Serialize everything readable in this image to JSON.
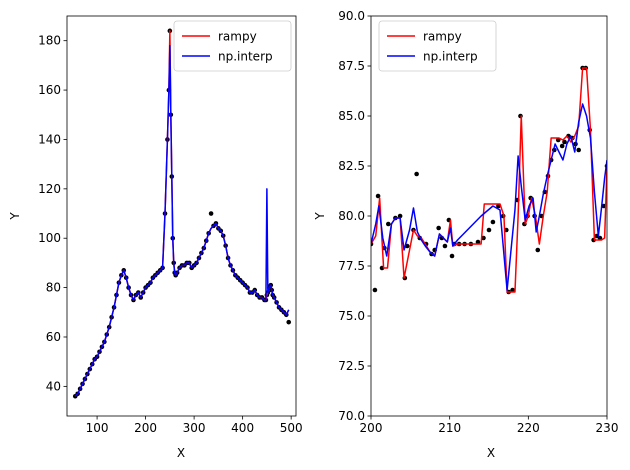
{
  "chart_data": [
    {
      "type": "line",
      "xlabel": "X",
      "ylabel": "Y",
      "xlim": [
        38,
        510
      ],
      "ylim": [
        28,
        190
      ],
      "xticks": [
        100,
        200,
        300,
        400,
        500
      ],
      "yticks": [
        40,
        60,
        80,
        100,
        120,
        140,
        160,
        180
      ],
      "legend_position": "top-right",
      "grid": false,
      "series": [
        {
          "name": "rampy",
          "color": "#ff0000",
          "x": [
            55,
            60,
            65,
            70,
            75,
            80,
            85,
            90,
            95,
            100,
            105,
            110,
            115,
            120,
            125,
            130,
            135,
            140,
            145,
            150,
            155,
            160,
            165,
            170,
            175,
            180,
            185,
            190,
            195,
            200,
            205,
            210,
            215,
            220,
            225,
            230,
            235,
            240,
            245,
            248,
            250,
            252,
            254,
            256,
            258,
            260,
            262,
            265,
            270,
            275,
            280,
            285,
            290,
            295,
            300,
            305,
            310,
            315,
            320,
            325,
            330,
            335,
            340,
            345,
            350,
            355,
            360,
            365,
            370,
            375,
            380,
            385,
            390,
            395,
            400,
            405,
            410,
            415,
            420,
            425,
            430,
            435,
            440,
            445,
            448,
            450,
            452,
            455,
            458,
            460,
            462,
            465,
            470,
            475,
            480,
            485,
            490,
            495
          ],
          "y": [
            36,
            37,
            39,
            41,
            43,
            45,
            47,
            49,
            51,
            52,
            54,
            56,
            58,
            61,
            64,
            68,
            72,
            77,
            82,
            85,
            87,
            84,
            80,
            77,
            75,
            77,
            78,
            76,
            78,
            80,
            81,
            82,
            84,
            85,
            86,
            87,
            88,
            110,
            140,
            160,
            184,
            150,
            125,
            100,
            90,
            86,
            85,
            86,
            88,
            89,
            89,
            90,
            90,
            88,
            89,
            90,
            92,
            94,
            96,
            99,
            102,
            104,
            105,
            106,
            104,
            103,
            101,
            97,
            92,
            89,
            87,
            85,
            84,
            83,
            82,
            81,
            80,
            78,
            78,
            79,
            77,
            76,
            76,
            75,
            75,
            77,
            78,
            80,
            81,
            79,
            77,
            76,
            74,
            72,
            71,
            70,
            69,
            71
          ]
        },
        {
          "name": "np.interp",
          "color": "#0000ff",
          "x": [
            55,
            60,
            65,
            70,
            75,
            80,
            85,
            90,
            95,
            100,
            105,
            110,
            115,
            120,
            125,
            130,
            135,
            140,
            145,
            150,
            155,
            160,
            165,
            170,
            175,
            180,
            185,
            190,
            195,
            200,
            205,
            210,
            215,
            220,
            225,
            230,
            235,
            240,
            245,
            248,
            250,
            252,
            254,
            256,
            258,
            260,
            262,
            265,
            270,
            275,
            280,
            285,
            290,
            295,
            300,
            305,
            310,
            315,
            320,
            325,
            330,
            335,
            340,
            345,
            350,
            355,
            360,
            365,
            370,
            375,
            380,
            385,
            390,
            395,
            400,
            405,
            410,
            415,
            420,
            425,
            430,
            435,
            440,
            445,
            448,
            450,
            452,
            455,
            458,
            460,
            462,
            465,
            470,
            475,
            480,
            485,
            490,
            495
          ],
          "y": [
            36,
            37,
            39,
            41,
            43,
            45,
            47,
            49,
            51,
            52,
            54,
            56,
            58,
            61,
            64,
            68,
            72,
            77,
            82,
            85,
            87,
            84,
            80,
            77,
            75,
            77,
            78,
            76,
            78,
            80,
            81,
            82,
            84,
            85,
            86,
            87,
            88,
            110,
            140,
            160,
            178,
            150,
            125,
            100,
            90,
            86,
            85,
            86,
            88,
            89,
            89,
            90,
            90,
            88,
            89,
            90,
            92,
            94,
            96,
            99,
            102,
            104,
            105,
            106,
            104,
            103,
            101,
            97,
            92,
            89,
            87,
            85,
            84,
            83,
            82,
            81,
            80,
            78,
            78,
            79,
            77,
            76,
            76,
            75,
            75,
            120,
            78,
            80,
            81,
            79,
            77,
            76,
            74,
            72,
            71,
            70,
            69,
            71
          ]
        }
      ],
      "points": {
        "color": "#000000",
        "x": [
          55,
          60,
          65,
          70,
          75,
          80,
          85,
          90,
          95,
          100,
          105,
          110,
          115,
          120,
          125,
          130,
          135,
          140,
          145,
          150,
          155,
          160,
          165,
          170,
          175,
          180,
          185,
          190,
          195,
          200,
          205,
          210,
          215,
          220,
          225,
          230,
          235,
          240,
          245,
          248,
          250,
          252,
          254,
          256,
          258,
          260,
          262,
          265,
          270,
          275,
          280,
          285,
          290,
          295,
          300,
          305,
          310,
          315,
          320,
          325,
          330,
          335,
          340,
          345,
          350,
          355,
          360,
          365,
          370,
          375,
          380,
          385,
          390,
          395,
          400,
          405,
          410,
          415,
          420,
          425,
          430,
          435,
          440,
          445,
          448,
          450,
          452,
          455,
          458,
          460,
          462,
          465,
          470,
          475,
          480,
          485,
          490,
          495
        ],
        "y": [
          36,
          37,
          39,
          41,
          43,
          45,
          47,
          49,
          51,
          52,
          54,
          56,
          58,
          61,
          64,
          68,
          72,
          77,
          82,
          85,
          87,
          84,
          80,
          77,
          75,
          77,
          78,
          76,
          78,
          80,
          81,
          82,
          84,
          85,
          86,
          87,
          88,
          110,
          140,
          160,
          184,
          150,
          125,
          100,
          90,
          86,
          85,
          86,
          88,
          89,
          89,
          90,
          90,
          88,
          89,
          90,
          92,
          94,
          96,
          99,
          102,
          110,
          105,
          106,
          104,
          103,
          101,
          97,
          92,
          89,
          87,
          85,
          84,
          83,
          82,
          81,
          80,
          78,
          78,
          79,
          77,
          76,
          76,
          75,
          75,
          77,
          78,
          80,
          81,
          79,
          77,
          76,
          74,
          72,
          71,
          70,
          69,
          66
        ]
      }
    },
    {
      "type": "line",
      "xlabel": "X",
      "ylabel": "Y",
      "xlim": [
        200,
        230
      ],
      "ylim": [
        70,
        90
      ],
      "xticks": [
        200,
        210,
        220,
        230
      ],
      "yticks": [
        70.0,
        72.5,
        75.0,
        77.5,
        80.0,
        82.5,
        85.0,
        87.5,
        90.0
      ],
      "legend_position": "top-left",
      "grid": false,
      "series": [
        {
          "name": "rampy",
          "color": "#ff0000",
          "x": [
            200.0,
            200.6,
            201.1,
            201.6,
            202.1,
            202.6,
            203.1,
            203.7,
            204.2,
            204.9,
            205.4,
            205.9,
            206.4,
            206.9,
            207.5,
            208.1,
            208.7,
            209.2,
            209.7,
            210.1,
            210.4,
            211.0,
            212.0,
            213.0,
            214.0,
            214.4,
            215.5,
            215.9,
            216.4,
            216.9,
            217.3,
            217.8,
            218.3,
            218.7,
            219.1,
            219.6,
            220.0,
            220.4,
            220.9,
            221.4,
            221.9,
            222.4,
            222.9,
            223.4,
            223.9,
            224.4,
            224.9,
            225.4,
            225.9,
            226.4,
            226.9,
            227.4,
            227.9,
            228.4,
            228.8,
            229.3,
            229.7,
            230.0
          ],
          "y": [
            78.6,
            79.0,
            80.9,
            77.4,
            77.4,
            79.6,
            79.9,
            79.9,
            76.9,
            78.3,
            79.3,
            79.0,
            78.9,
            78.6,
            78.2,
            78.0,
            79.1,
            78.9,
            78.7,
            79.8,
            78.5,
            78.6,
            78.6,
            78.6,
            78.6,
            80.6,
            80.6,
            80.6,
            80.6,
            80.0,
            76.2,
            76.2,
            76.2,
            80.0,
            85.0,
            79.6,
            80.0,
            80.9,
            80.0,
            78.6,
            80.0,
            81.2,
            83.9,
            83.9,
            83.9,
            83.8,
            84.0,
            83.7,
            84.0,
            84.5,
            87.4,
            87.4,
            84.3,
            78.8,
            78.8,
            78.8,
            78.9,
            82.5
          ]
        },
        {
          "name": "np.interp",
          "color": "#0000ff",
          "x": [
            200.0,
            200.6,
            201.0,
            201.5,
            202.0,
            202.6,
            203.1,
            203.7,
            204.2,
            204.9,
            205.4,
            205.9,
            206.4,
            206.9,
            207.5,
            208.1,
            208.7,
            209.2,
            209.7,
            210.1,
            210.4,
            211.0,
            212.0,
            213.0,
            214.0,
            215.5,
            216.4,
            217.3,
            218.3,
            218.7,
            219.1,
            219.6,
            220.1,
            220.6,
            221.0,
            221.4,
            221.9,
            222.4,
            222.9,
            223.4,
            223.9,
            224.4,
            224.9,
            225.4,
            225.9,
            226.4,
            226.9,
            227.4,
            227.9,
            228.4,
            228.9,
            229.3,
            229.7,
            230.0
          ],
          "y": [
            78.6,
            79.6,
            80.5,
            78.9,
            78.0,
            79.6,
            79.9,
            79.9,
            78.3,
            79.3,
            80.4,
            79.2,
            78.8,
            78.5,
            78.2,
            78.0,
            79.1,
            78.9,
            78.7,
            79.4,
            78.5,
            78.8,
            79.2,
            79.6,
            80.0,
            80.5,
            80.3,
            76.3,
            80.3,
            83.0,
            81.5,
            79.8,
            80.5,
            80.9,
            79.2,
            80.0,
            81.1,
            82.0,
            82.8,
            83.6,
            83.2,
            82.8,
            83.6,
            84.0,
            83.2,
            84.7,
            85.6,
            85.0,
            83.9,
            81.2,
            79.0,
            80.4,
            81.9,
            82.8
          ]
        }
      ],
      "points": {
        "color": "#000000",
        "x": [
          200.0,
          200.5,
          200.9,
          201.4,
          201.7,
          202.2,
          203.1,
          203.7,
          204.3,
          204.6,
          205.4,
          205.8,
          206.2,
          207.0,
          207.7,
          208.1,
          208.6,
          209.0,
          209.4,
          209.9,
          210.3,
          210.6,
          211.2,
          211.9,
          212.7,
          213.6,
          214.3,
          215.0,
          215.5,
          216.2,
          216.8,
          217.2,
          217.5,
          218.0,
          218.6,
          219.0,
          219.5,
          219.9,
          220.3,
          220.8,
          221.2,
          221.7,
          222.1,
          222.5,
          222.9,
          223.3,
          223.8,
          224.3,
          224.6,
          225.1,
          225.6,
          226.0,
          226.4,
          226.9,
          227.3,
          227.8,
          228.3,
          228.7,
          229.1,
          229.6,
          230.0
        ],
        "y": [
          78.6,
          76.3,
          81.0,
          77.4,
          78.4,
          79.6,
          79.9,
          80.0,
          76.9,
          78.5,
          79.3,
          82.1,
          78.9,
          78.6,
          78.1,
          78.3,
          79.4,
          78.9,
          78.5,
          79.8,
          78.0,
          78.6,
          78.6,
          78.6,
          78.6,
          78.7,
          78.9,
          79.3,
          79.7,
          80.5,
          80.0,
          79.3,
          76.2,
          76.3,
          80.8,
          85.0,
          79.6,
          80.0,
          80.9,
          80.0,
          78.3,
          80.0,
          81.2,
          82.0,
          82.8,
          83.3,
          83.8,
          83.5,
          83.7,
          84.0,
          83.9,
          83.6,
          83.3,
          87.4,
          87.4,
          84.3,
          78.8,
          79.0,
          78.9,
          80.5,
          82.5
        ]
      }
    }
  ]
}
